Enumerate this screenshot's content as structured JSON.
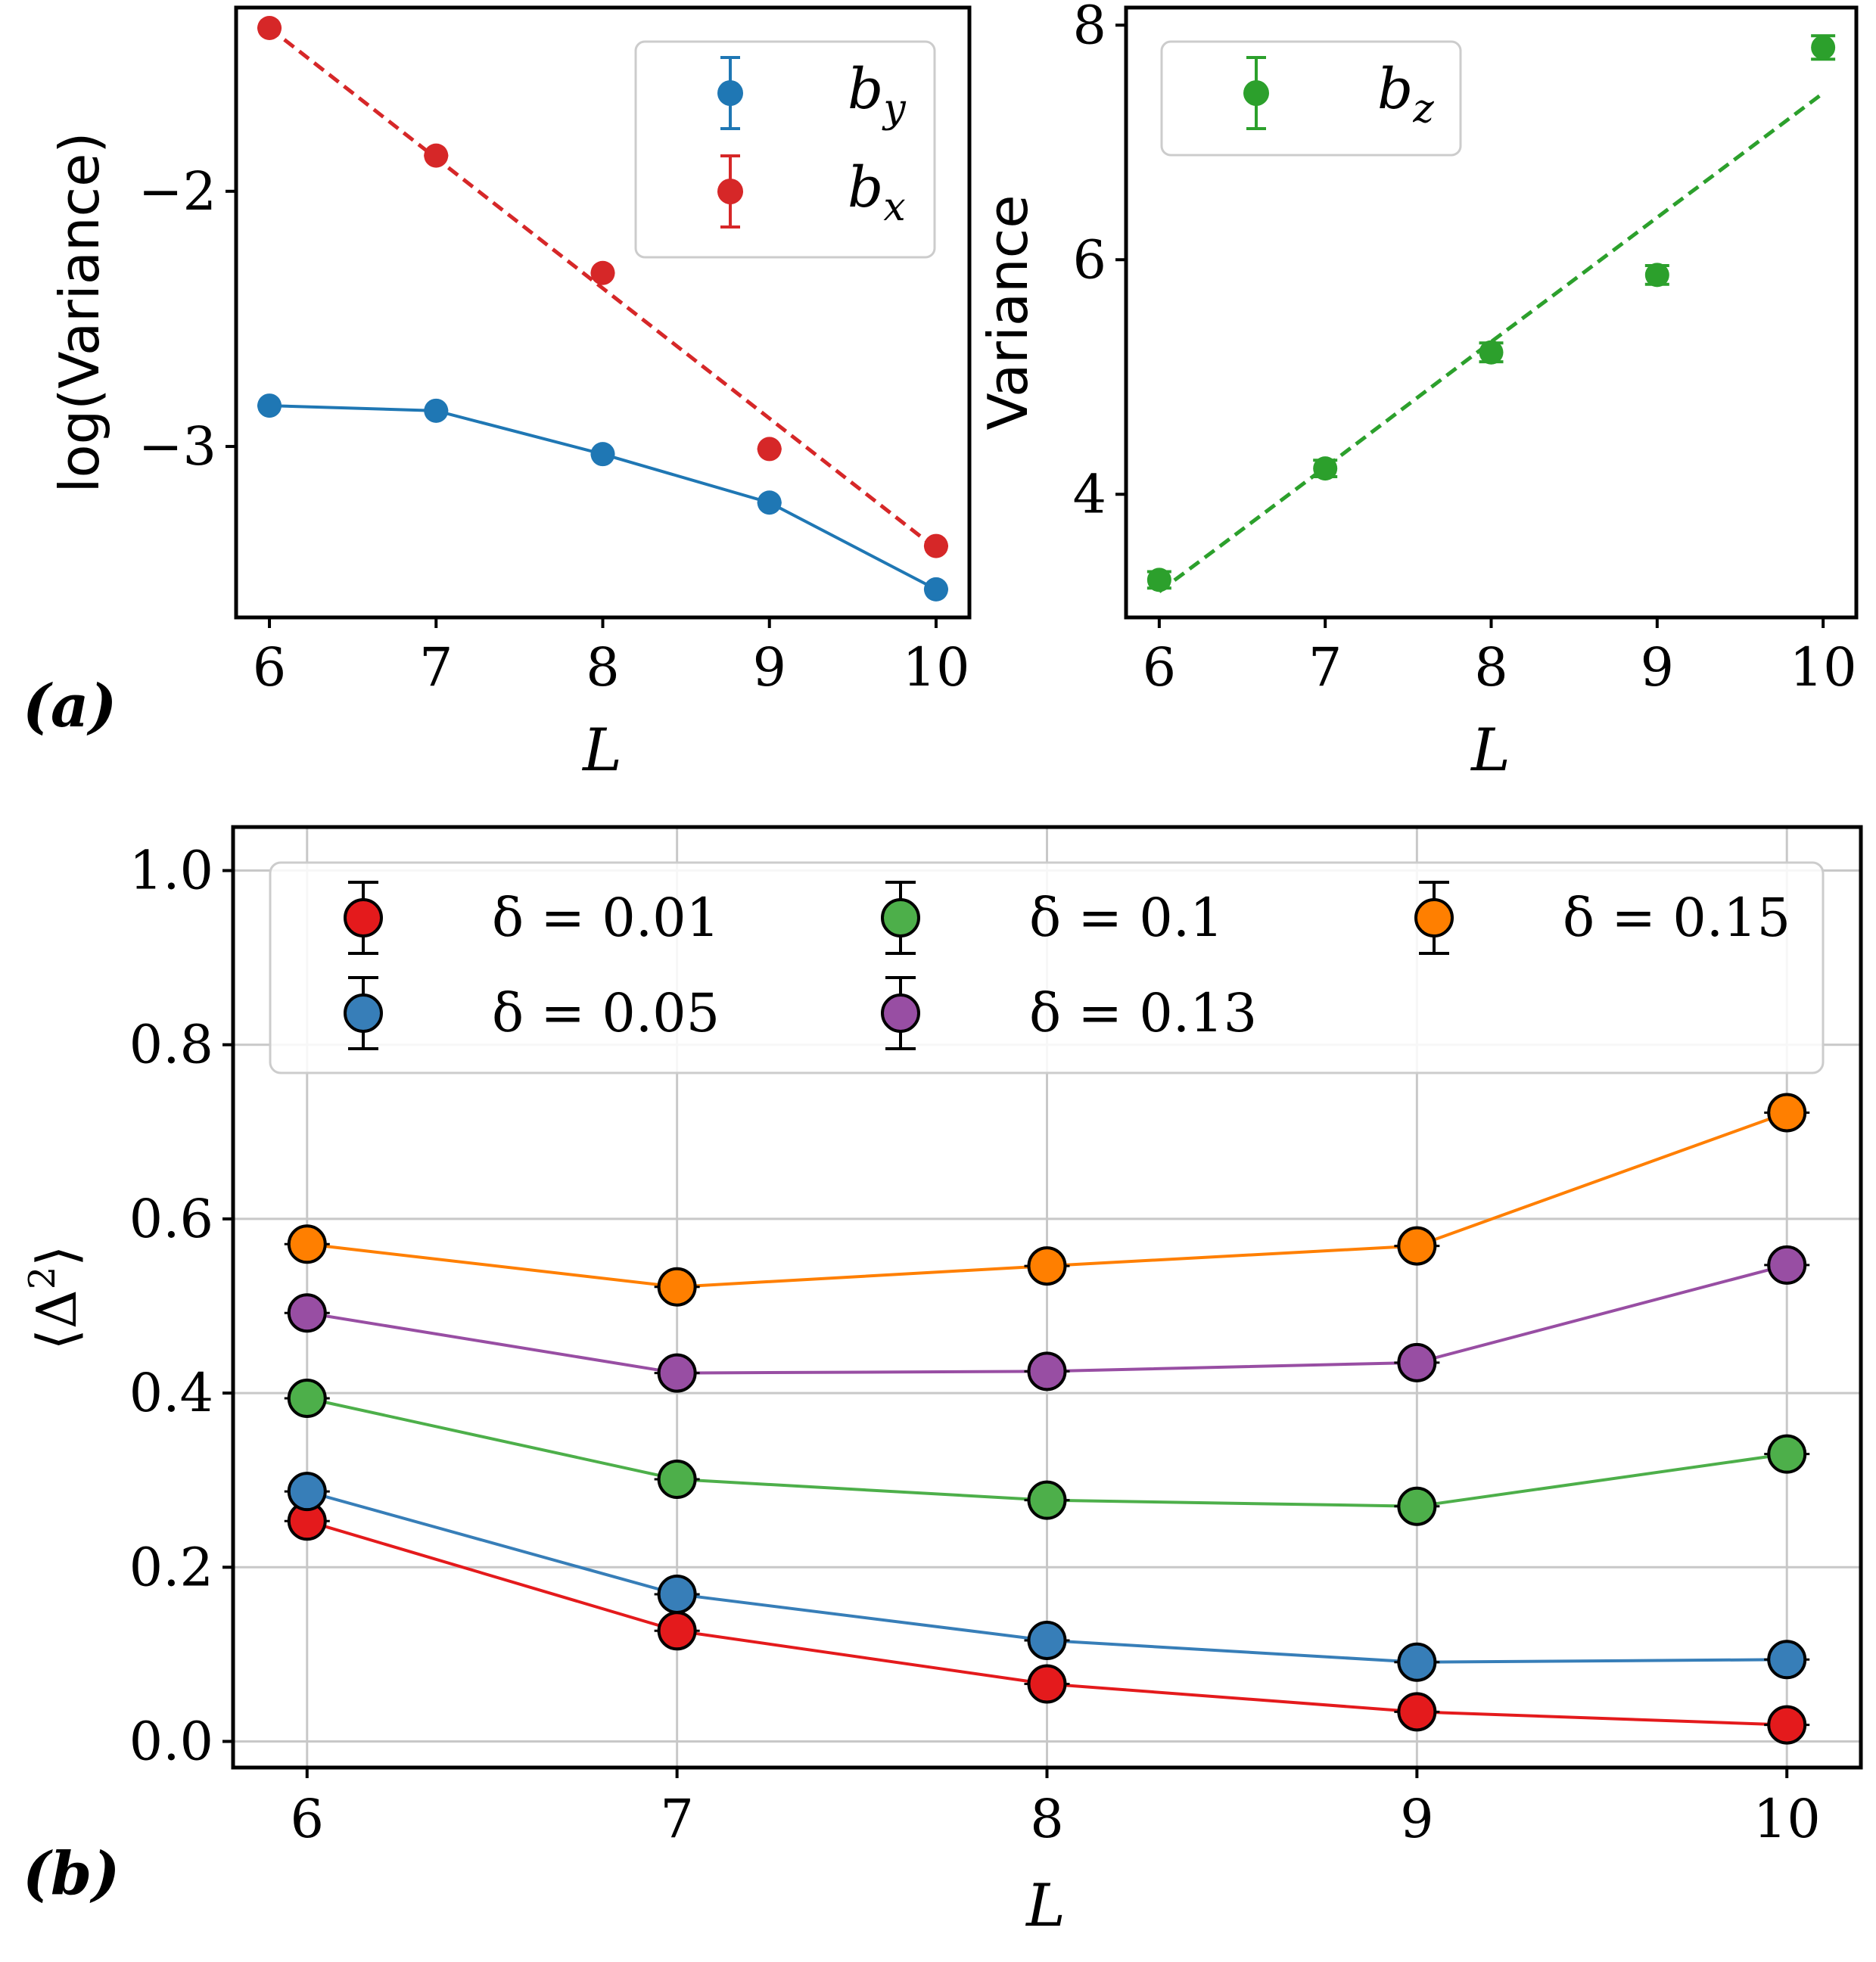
{
  "chart_data": [
    {
      "id": "a-left",
      "panel_label": "(a)",
      "type": "line",
      "xlabel": "L",
      "ylabel": "log(Variance)",
      "xlim": [
        5.8,
        10.2
      ],
      "ylim": [
        -3.67,
        -1.28
      ],
      "xticks": [
        "6",
        "7",
        "8",
        "9",
        "10"
      ],
      "yticks": [
        "−2",
        "−3"
      ],
      "x": [
        6,
        7,
        8,
        9,
        10
      ],
      "series": [
        {
          "name": "b_y",
          "label_base": "b",
          "label_sub": "y",
          "color": "#1f77b4",
          "style": "solid",
          "values": [
            -2.84,
            -2.86,
            -3.03,
            -3.22,
            -3.56
          ]
        },
        {
          "name": "b_x",
          "label_base": "b",
          "label_sub": "x",
          "color": "#d62728",
          "style": "dashed",
          "values": [
            -1.36,
            -1.86,
            -2.32,
            -3.01,
            -3.39
          ],
          "fit": [
            -1.36,
            -1.87,
            -2.38,
            -2.89,
            -3.4
          ]
        }
      ],
      "legend": "top-right"
    },
    {
      "id": "a-right",
      "type": "scatter",
      "xlabel": "L",
      "ylabel": "Variance",
      "xlim": [
        5.8,
        10.2
      ],
      "ylim": [
        2.95,
        8.15
      ],
      "xticks": [
        "6",
        "7",
        "8",
        "9",
        "10"
      ],
      "yticks": [
        "4",
        "6",
        "8"
      ],
      "x": [
        6,
        7,
        8,
        9,
        10
      ],
      "series": [
        {
          "name": "b_z",
          "label_base": "b",
          "label_sub": "z",
          "color": "#2ca02c",
          "style": "markers",
          "values": [
            3.27,
            4.22,
            5.21,
            5.87,
            7.81
          ],
          "errors": [
            0.07,
            0.07,
            0.08,
            0.08,
            0.1
          ],
          "fit": [
            3.17,
            4.23,
            5.3,
            6.36,
            7.42
          ]
        }
      ],
      "legend": "top-left"
    },
    {
      "id": "b",
      "panel_label": "(b)",
      "type": "line",
      "xlabel": "L",
      "ylabel": "⟨Δ²⟩",
      "xlim": [
        5.8,
        10.2
      ],
      "ylim": [
        -0.03,
        1.05
      ],
      "grid": true,
      "xticks": [
        "6",
        "7",
        "8",
        "9",
        "10"
      ],
      "yticks": [
        "0.0",
        "0.2",
        "0.4",
        "0.6",
        "0.8",
        "1.0"
      ],
      "x": [
        6,
        7,
        8,
        9,
        10
      ],
      "series": [
        {
          "name": "δ = 0.01",
          "color": "#e41a1c",
          "values": [
            0.253,
            0.127,
            0.066,
            0.034,
            0.019
          ]
        },
        {
          "name": "δ = 0.05",
          "color": "#377eb8",
          "values": [
            0.287,
            0.169,
            0.116,
            0.091,
            0.094
          ]
        },
        {
          "name": "δ = 0.1",
          "color": "#4daf4a",
          "values": [
            0.394,
            0.301,
            0.277,
            0.27,
            0.33
          ]
        },
        {
          "name": "δ = 0.13",
          "color": "#984ea3",
          "values": [
            0.492,
            0.423,
            0.425,
            0.435,
            0.547
          ]
        },
        {
          "name": "δ = 0.15",
          "color": "#ff7f00",
          "values": [
            0.571,
            0.522,
            0.546,
            0.569,
            0.722
          ]
        }
      ],
      "legend": "top, 3 columns"
    }
  ]
}
